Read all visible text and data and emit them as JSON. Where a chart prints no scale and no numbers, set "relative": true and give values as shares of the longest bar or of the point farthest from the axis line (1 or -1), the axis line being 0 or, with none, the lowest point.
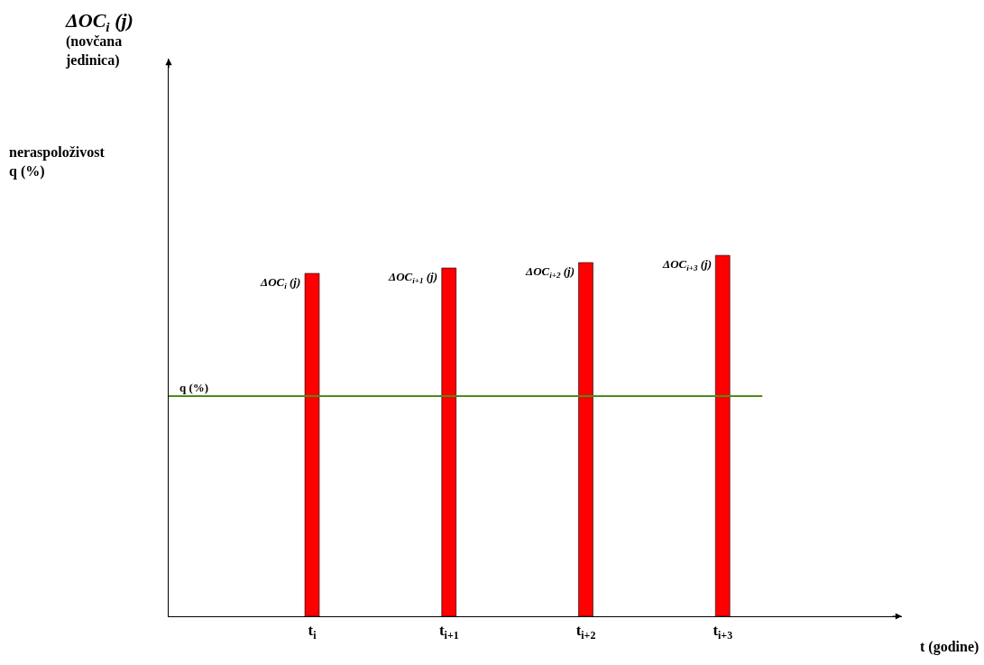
{
  "chart_data": {
    "type": "bar",
    "relative": true,
    "annotations": [
      "ΔOC$_{i}$ (j)\n(novčana\njedinica)",
      "neraspoloživost\nq (%)",
      "t (godine)",
      {
        "text": "ΔOC$_{i}$ (j)",
        "x": "t$_{i}$",
        "y": 0.95
      },
      {
        "text": "ΔOC$_{i+1}$ (j)",
        "x": "t$_{i+1}$",
        "y": 0.965
      },
      {
        "text": "ΔOC$_{i+2}$ (j)",
        "x": "t$_{i+2}$",
        "y": 0.98
      },
      {
        "text": "ΔOC$_{i+3}$ (j)",
        "x": "t$_{i+3}$",
        "y": 1
      }
    ],
    "categories": [
      "t$_{i}$",
      "t$_{i+1}$",
      "t$_{i+2}$",
      "t$_{i+3}$"
    ],
    "values": [
      0.95,
      0.965,
      0.98,
      1
    ],
    "color": "#ff0000",
    "ref_lines": [
      {
        "axis": "y",
        "value": 0.61,
        "label": "q (%)",
        "color": "#4e8a1e"
      }
    ]
  }
}
